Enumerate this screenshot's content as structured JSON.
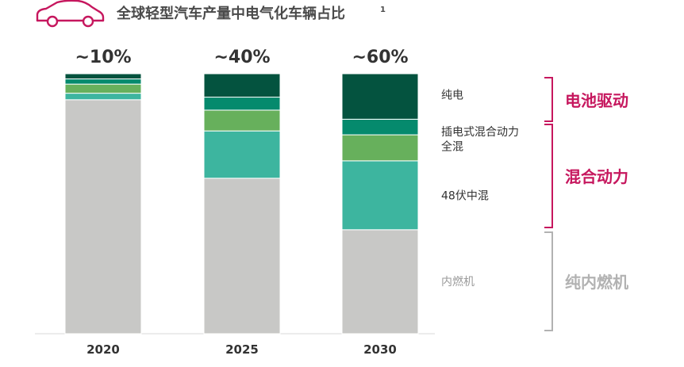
{
  "title": "全球轻型汽车产量中电气化车辆占比",
  "title_footnote": "1",
  "icon": "car-outline-icon",
  "chart_data": {
    "type": "stacked-bar",
    "categories": [
      "2020",
      "2025",
      "2030"
    ],
    "ylim": [
      0,
      100
    ],
    "grid": false,
    "legend_position": "right",
    "bar_totals": [
      "~10%",
      "~40%",
      "~60%"
    ],
    "series": [
      {
        "name": "内燃机",
        "color": "#c8c8c6",
        "values": [
          90,
          59.8,
          40
        ]
      },
      {
        "name": "48伏中混",
        "color": "#3db59f",
        "values": [
          2.5,
          18.2,
          26.5
        ]
      },
      {
        "name": "全混",
        "color": "#67b05c",
        "values": [
          3.5,
          8,
          10
        ]
      },
      {
        "name": "插电式混合动力",
        "color": "#058a6d",
        "values": [
          2,
          5,
          6
        ]
      },
      {
        "name": "纯电",
        "color": "#04533f",
        "values": [
          2,
          9,
          17.5
        ]
      }
    ],
    "groups": [
      {
        "label": "电池驱动",
        "color": "#c6175e",
        "members": [
          "纯电"
        ]
      },
      {
        "label": "混合动力",
        "color": "#c6175e",
        "members": [
          "插电式混合动力",
          "全混",
          "48伏中混"
        ]
      },
      {
        "label": "纯内燃机",
        "color": "#b2b2b2",
        "members": [
          "内燃机"
        ]
      }
    ]
  }
}
